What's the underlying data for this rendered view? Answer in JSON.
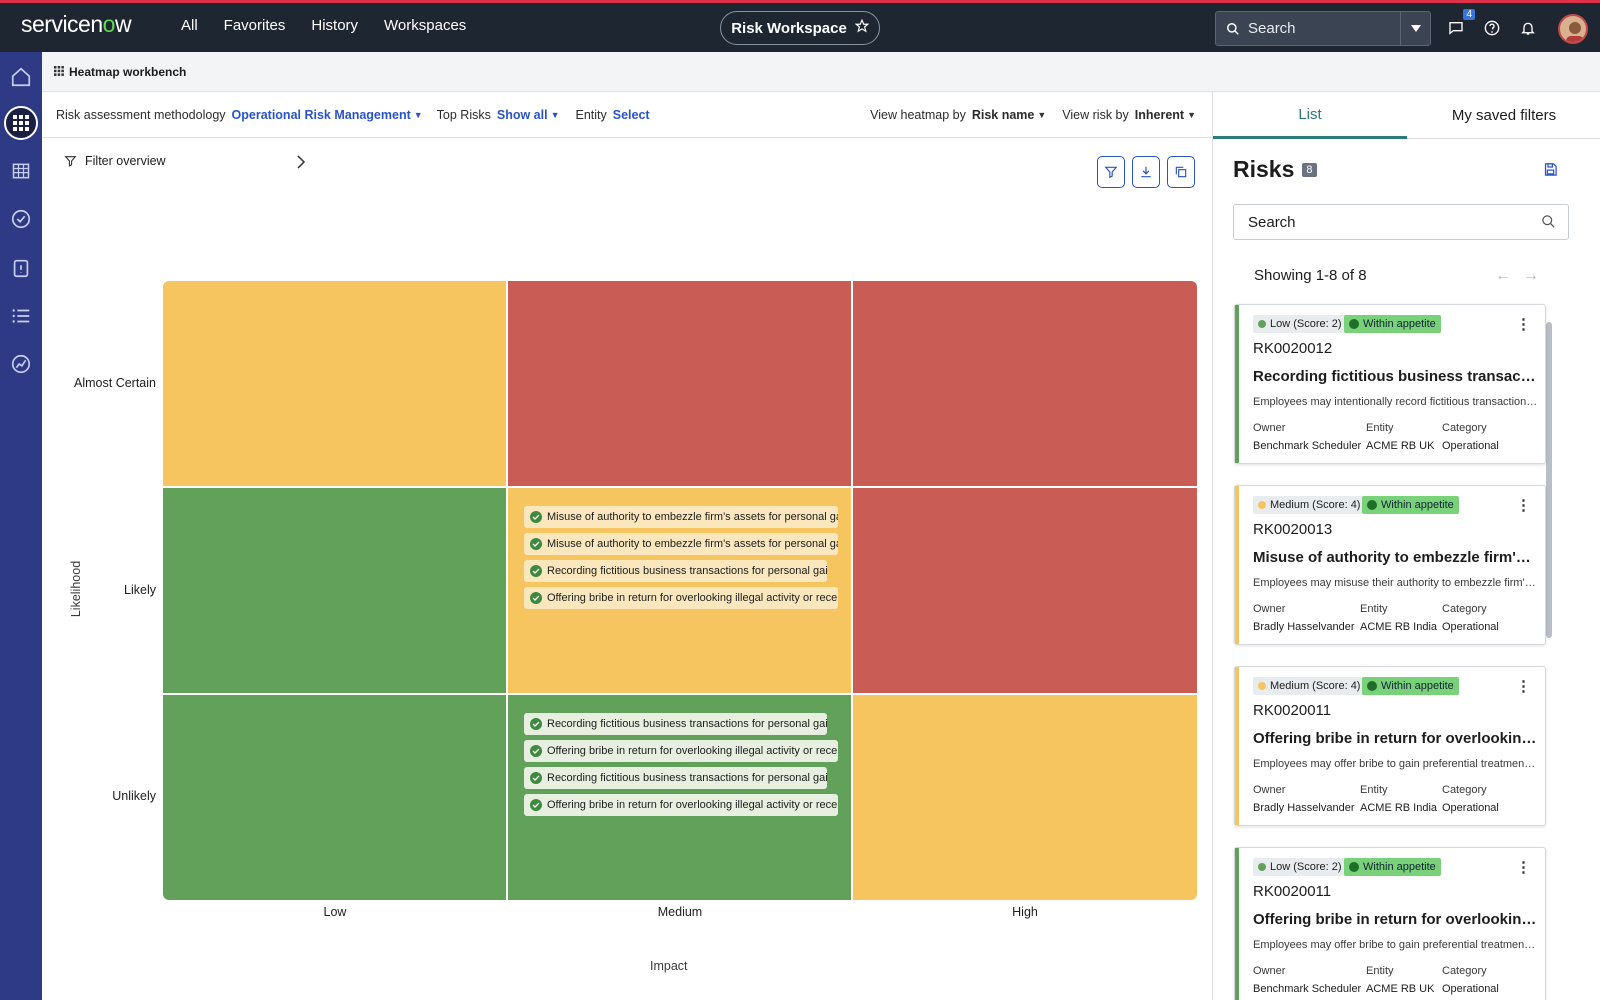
{
  "colors": {
    "topbar": "#1e2632",
    "rail": "#2e3a85",
    "amber": "#f6c55f",
    "red": "#c95d56",
    "green": "#62a15a",
    "link": "#2a54c6",
    "accent_tab": "#2d7a7a"
  },
  "topbar": {
    "logo_pre": "servicen",
    "logo_o": "o",
    "logo_post": "w",
    "nav": [
      "All",
      "Favorites",
      "History",
      "Workspaces"
    ],
    "workspace": "Risk Workspace",
    "search_placeholder": "Search",
    "chat_badge": "4"
  },
  "breadcrumb": {
    "title": "Heatmap workbench"
  },
  "filters": {
    "methodology_label": "Risk assessment methodology",
    "methodology_value": "Operational Risk Management",
    "top_risks_label": "Top Risks",
    "top_risks_value": "Show all",
    "entity_label": "Entity",
    "entity_value": "Select",
    "view_heatmap_label": "View heatmap by",
    "view_heatmap_value": "Risk name",
    "view_risk_label": "View risk by",
    "view_risk_value": "Inherent"
  },
  "heatmap": {
    "filter_overview": "Filter overview",
    "y_axis": "Likelihood",
    "x_axis": "Impact",
    "rows": [
      "Almost Certain",
      "Likely",
      "Unlikely"
    ],
    "cols": [
      "Low",
      "Medium",
      "High"
    ],
    "likely_medium": [
      "Misuse of authority to embezzle firm's assets for personal gair",
      "Misuse of authority to embezzle firm's assets for personal gair",
      "Recording fictitious business transactions for personal gains",
      "Offering bribe in return for overlooking illegal activity or recei"
    ],
    "unlikely_medium": [
      "Recording fictitious business transactions for personal gains",
      "Offering bribe in return for overlooking illegal activity or recei",
      "Recording fictitious business transactions for personal gains",
      "Offering bribe in return for overlooking illegal activity or recei"
    ]
  },
  "panel": {
    "tab_list": "List",
    "tab_saved": "My saved filters",
    "title": "Risks",
    "count": "8",
    "search_placeholder": "Search",
    "showing": "Showing 1-8 of 8",
    "owner_label": "Owner",
    "entity_label": "Entity",
    "category_label": "Category",
    "appetite": "Within appetite",
    "cards": [
      {
        "severity": "Low (Score: 2)",
        "sev_color": "#62a15a",
        "number": "RK0020012",
        "title": "Recording fictitious business transactions fo...",
        "desc": "Employees may intentionally record fictitious transactions, ...",
        "owner": "Benchmark Scheduler",
        "entity": "ACME RB UK",
        "category": "Operational"
      },
      {
        "severity": "Medium (Score: 4)",
        "sev_color": "#f6c55f",
        "number": "RK0020013",
        "title": "Misuse of authority to embezzle firm's asset...",
        "desc": "Employees may misuse their authority to embezzle firm's as...",
        "owner": "Bradly Hasselvander",
        "entity": "ACME RB India",
        "category": "Operational"
      },
      {
        "severity": "Medium (Score: 4)",
        "sev_color": "#f6c55f",
        "number": "RK0020011",
        "title": "Offering bribe in return for overlooking illeg...",
        "desc": "Employees may offer bribe to gain preferential treatment or ...",
        "owner": "Bradly Hasselvander",
        "entity": "ACME RB India",
        "category": "Operational"
      },
      {
        "severity": "Low (Score: 2)",
        "sev_color": "#62a15a",
        "number": "RK0020011",
        "title": "Offering bribe in return for overlooking illeg...",
        "desc": "Employees may offer bribe to gain preferential treatment or ...",
        "owner": "Benchmark Scheduler",
        "entity": "ACME RB UK",
        "category": "Operational"
      }
    ]
  }
}
